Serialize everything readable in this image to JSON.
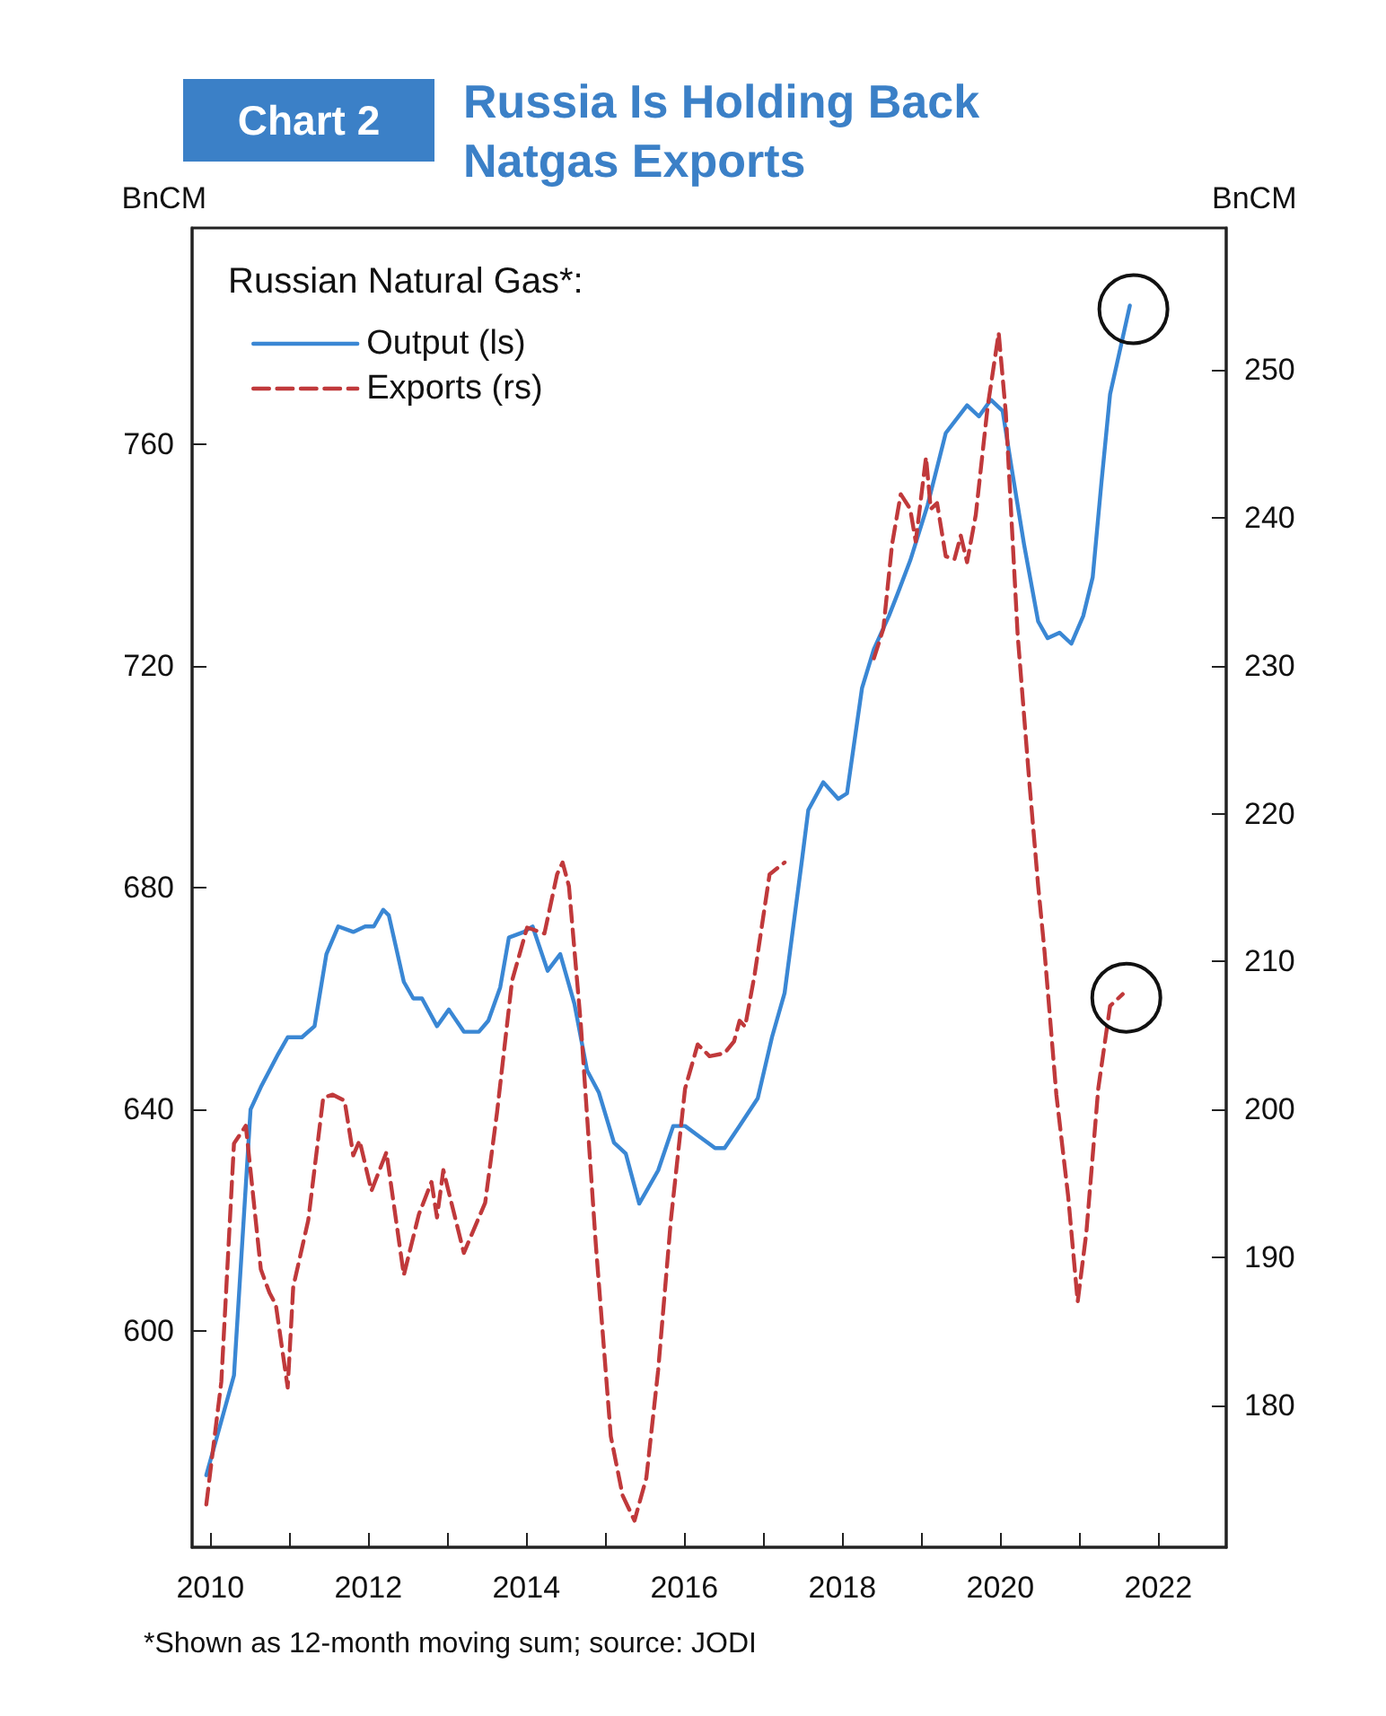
{
  "chart_data": {
    "type": "line",
    "title": "Russia Is Holding Back Natgas Exports",
    "subtitle": "Chart 2",
    "ylabel": "BnCM",
    "y2label": "BnCM",
    "legend_title": "Russian Natural Gas*:",
    "annotations": [
      "*Shown as 12-month moving sum; source: JODI"
    ],
    "legend": "top left",
    "grid": false,
    "marker": "none",
    "xlim": [
      2009.77,
      2022.86
    ],
    "xticks": [
      {
        "value": 2010,
        "label": "2010"
      },
      {
        "value": 2011,
        "label": null
      },
      {
        "value": 2012,
        "label": "2012"
      },
      {
        "value": 2013,
        "label": null
      },
      {
        "value": 2014,
        "label": "2014"
      },
      {
        "value": 2015,
        "label": null
      },
      {
        "value": 2016,
        "label": "2016"
      },
      {
        "value": 2017,
        "label": null
      },
      {
        "value": 2018,
        "label": "2018"
      },
      {
        "value": 2019,
        "label": null
      },
      {
        "value": 2020,
        "label": "2020"
      },
      {
        "value": 2021,
        "label": null
      },
      {
        "value": 2022,
        "label": "2022"
      }
    ],
    "ylim": [
      561,
      799
    ],
    "yticks": [
      600,
      640,
      680,
      720,
      760
    ],
    "y2lim": [
      170.4,
      259.6
    ],
    "y2ticks": [
      180,
      190,
      200,
      210,
      220,
      230,
      240,
      250
    ],
    "series": [
      {
        "name": "Output (ls)",
        "color": "#3a87d4",
        "line_style": "solid",
        "x": [
          2009.95,
          2010.3,
          2010.51,
          2010.64,
          2010.86,
          2010.98,
          2011.16,
          2011.32,
          2011.47,
          2011.62,
          2011.81,
          2011.96,
          2012.07,
          2012.19,
          2012.26,
          2012.45,
          2012.57,
          2012.68,
          2012.87,
          2013.02,
          2013.21,
          2013.4,
          2013.52,
          2013.67,
          2013.78,
          2013.97,
          2014.08,
          2014.27,
          2014.43,
          2014.61,
          2014.77,
          2014.92,
          2015.11,
          2015.26,
          2015.43,
          2015.67,
          2015.86,
          2016.01,
          2016.2,
          2016.39,
          2016.51,
          2016.7,
          2016.93,
          2017.11,
          2017.27,
          2017.49,
          2017.57,
          2017.76,
          2017.95,
          2018.06,
          2018.25,
          2018.4,
          2018.59,
          2018.7,
          2018.86,
          2019.08,
          2019.31,
          2019.58,
          2019.73,
          2019.88,
          2020.03,
          2020.14,
          2020.3,
          2020.48,
          2020.6,
          2020.75,
          2020.9,
          2021.05,
          2021.17,
          2021.28,
          2021.39,
          2021.5,
          2021.64
        ],
        "values": [
          574,
          592,
          640,
          644,
          650,
          653,
          653,
          655,
          668,
          673,
          672,
          673,
          673,
          676,
          675,
          663,
          660,
          660,
          655,
          658,
          654,
          654,
          656,
          662,
          671,
          672,
          673,
          665,
          668,
          659,
          647,
          643,
          634,
          632,
          623,
          629,
          637,
          637,
          635,
          633,
          633,
          637,
          642,
          653,
          661,
          685,
          694,
          699,
          696,
          697,
          716,
          723,
          729,
          733,
          739,
          749,
          762,
          767,
          765,
          768,
          766,
          756,
          742,
          728,
          725,
          726,
          724,
          729,
          736,
          753,
          769,
          776,
          785
        ]
      },
      {
        "name": "Exports (rs)",
        "color": "#c0393b",
        "line_style": "dashed",
        "axis": "y2",
        "x": [
          2009.95,
          2010.14,
          2010.3,
          2010.45,
          2010.64,
          2010.75,
          2010.83,
          2010.98,
          2011.05,
          2011.24,
          2011.43,
          2011.55,
          2011.7,
          2011.81,
          2011.89,
          2012.04,
          2012.23,
          2012.45,
          2012.64,
          2012.8,
          2012.87,
          2012.95,
          2013.21,
          2013.48,
          2013.63,
          2013.82,
          2014.01,
          2014.23,
          2014.39,
          2014.46,
          2014.54,
          2014.69,
          2014.88,
          2015.07,
          2015.22,
          2015.37,
          2015.52,
          2015.67,
          2015.83,
          2016.01,
          2016.17,
          2016.32,
          2016.51,
          2016.63,
          2016.7,
          2016.77,
          2016.89,
          2017.08,
          2017.27,
          2017.8,
          2018.4,
          2018.52,
          2018.63,
          2018.74,
          2018.86,
          2018.93,
          2019.06,
          2019.12,
          2019.2,
          2019.31,
          2019.42,
          2019.5,
          2019.58,
          2019.69,
          2019.84,
          2019.98,
          2020.07,
          2020.22,
          2020.37,
          2020.48,
          2020.56,
          2020.71,
          2020.86,
          2020.98,
          2021.09,
          2021.24,
          2021.39,
          2021.55
        ],
        "values": [
          173.3,
          181.6,
          197.7,
          198.9,
          189.2,
          187.6,
          186.8,
          181.2,
          188,
          192.5,
          200.8,
          201,
          200.6,
          196.9,
          197.9,
          194.5,
          197.1,
          188.8,
          192.9,
          195.1,
          192.7,
          195.9,
          190.3,
          193.7,
          199.8,
          208.7,
          212.3,
          211.9,
          215.9,
          216.7,
          215.1,
          205.8,
          190.9,
          177.9,
          173.9,
          172.2,
          175.1,
          182.4,
          192.5,
          201.4,
          204.4,
          203.6,
          203.8,
          204.6,
          206,
          205.6,
          209.1,
          215.9,
          216.7,
          null,
          230.5,
          232.5,
          238.2,
          241.6,
          240.6,
          238.4,
          244.1,
          240.6,
          241,
          237.4,
          237.2,
          238.8,
          237,
          240.2,
          247.5,
          252.5,
          247.1,
          232.1,
          222,
          215.1,
          210.7,
          201,
          194.1,
          187,
          191.7,
          201.4,
          207,
          207.8
        ]
      }
    ]
  }
}
